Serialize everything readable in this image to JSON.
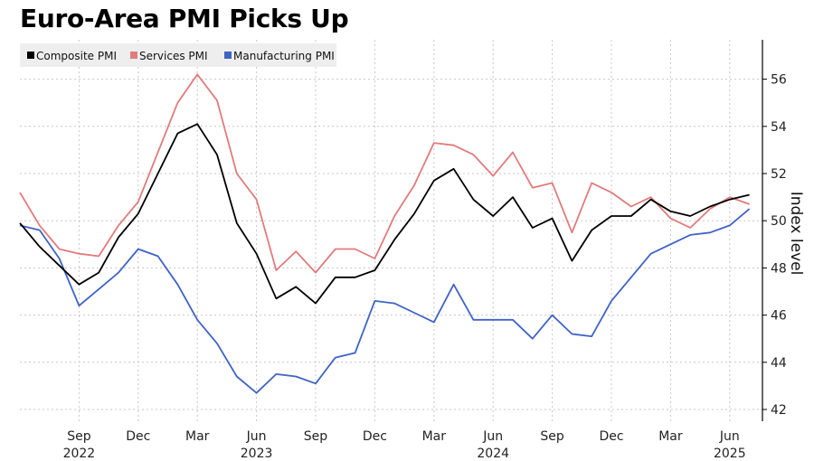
{
  "chart_data": {
    "type": "line",
    "title": "Euro-Area PMI Picks Up",
    "ylabel": "Index level",
    "ylim": [
      41.7,
      57.6
    ],
    "y_ticks": [
      42,
      44,
      46,
      48,
      50,
      52,
      54,
      56
    ],
    "x_tick_labels": [
      "Sep",
      "Dec",
      "Mar",
      "Jun",
      "Sep",
      "Dec",
      "Mar",
      "Jun",
      "Sep",
      "Dec",
      "Mar",
      "Jun"
    ],
    "x_tick_index": [
      3,
      6,
      9,
      12,
      15,
      18,
      21,
      24,
      27,
      30,
      33,
      36
    ],
    "year_labels": [
      "2022",
      "2023",
      "2024",
      "2025"
    ],
    "year_index": [
      3,
      12,
      24,
      36
    ],
    "grid": true,
    "legend_position": "top-left",
    "series": [
      {
        "name": "Composite PMI",
        "color": "#000000",
        "values": [
          49.9,
          48.9,
          48.1,
          47.3,
          47.8,
          49.3,
          50.3,
          52.0,
          53.7,
          54.1,
          52.8,
          49.9,
          48.6,
          46.7,
          47.2,
          46.5,
          47.6,
          47.6,
          47.9,
          49.2,
          50.3,
          51.7,
          52.2,
          50.9,
          50.2,
          51.0,
          49.7,
          50.1,
          48.3,
          49.6,
          50.2,
          50.2,
          50.9,
          50.4,
          50.2,
          50.6,
          50.9,
          51.1
        ]
      },
      {
        "name": "Services PMI",
        "color": "#e27b7b",
        "values": [
          51.2,
          49.8,
          48.8,
          48.6,
          48.5,
          49.8,
          50.8,
          52.9,
          55.0,
          56.2,
          55.1,
          52.0,
          50.9,
          47.9,
          48.7,
          47.8,
          48.8,
          48.8,
          48.4,
          50.2,
          51.5,
          53.3,
          53.2,
          52.8,
          51.9,
          52.9,
          51.4,
          51.6,
          49.5,
          51.6,
          51.2,
          50.6,
          51.0,
          50.1,
          49.7,
          50.5,
          51.0,
          50.7
        ]
      },
      {
        "name": "Manufacturing PMI",
        "color": "#3f63c6",
        "values": [
          49.8,
          49.6,
          48.4,
          46.4,
          47.1,
          47.8,
          48.8,
          48.5,
          47.3,
          45.8,
          44.8,
          43.4,
          42.7,
          43.5,
          43.4,
          43.1,
          44.2,
          44.4,
          46.6,
          46.5,
          46.1,
          45.7,
          47.3,
          45.8,
          45.8,
          45.8,
          45.0,
          46.0,
          45.2,
          45.1,
          46.6,
          47.6,
          48.6,
          49.0,
          49.4,
          49.5,
          49.8,
          50.5
        ]
      }
    ]
  }
}
